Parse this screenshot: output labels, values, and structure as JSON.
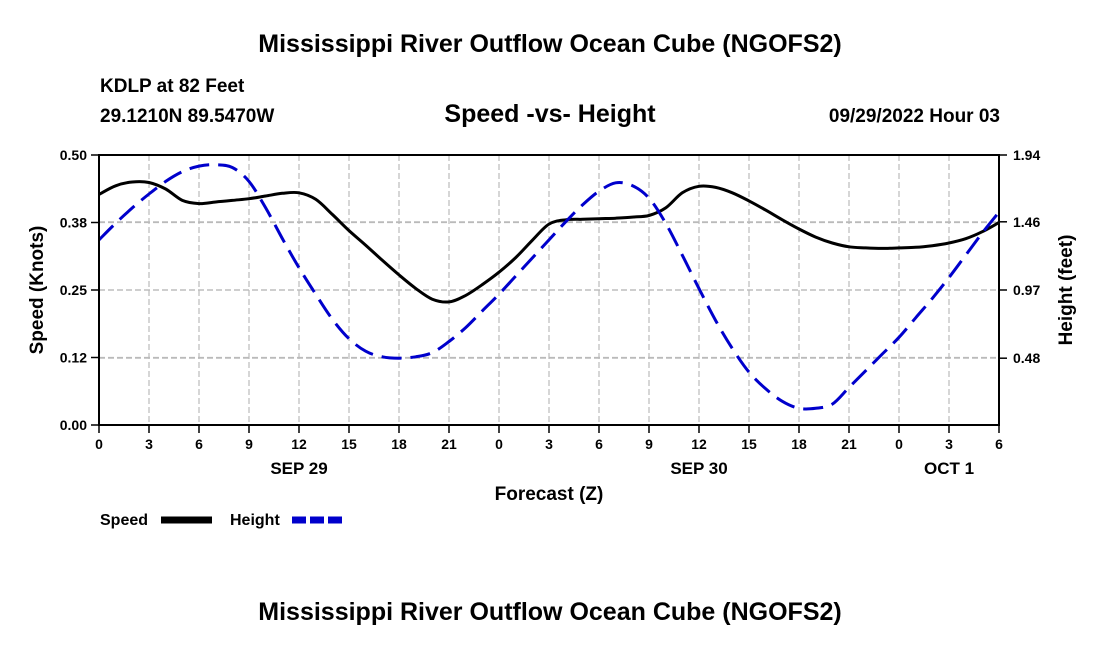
{
  "title": "Mississippi River Outflow Ocean Cube (NGOFS2)",
  "footer_title": "Mississippi River Outflow Ocean Cube (NGOFS2)",
  "station": {
    "name": "KDLP at 82 Feet",
    "coords": "29.1210N  89.5470W",
    "timestamp": "09/29/2022 Hour 03"
  },
  "colors": {
    "speed": "#000000",
    "height": "#0000cc",
    "grid": "#bbbbbb"
  },
  "chart_data": {
    "type": "line",
    "title": "Speed -vs- Height",
    "xlabel": "Forecast (Z)",
    "ylabel": "Speed (Knots)",
    "y2label": "Height (feet)",
    "xlim": [
      0,
      54
    ],
    "ylim": [
      0,
      0.5
    ],
    "y2lim": [
      0,
      1.94
    ],
    "x_ticks": [
      0,
      3,
      6,
      9,
      12,
      15,
      18,
      21,
      24,
      27,
      30,
      33,
      36,
      39,
      42,
      45,
      48,
      51,
      54
    ],
    "x_tick_labels": [
      "0",
      "3",
      "6",
      "9",
      "12",
      "15",
      "18",
      "21",
      "0",
      "3",
      "6",
      "9",
      "12",
      "15",
      "18",
      "21",
      "0",
      "3",
      "6"
    ],
    "y_ticks": [
      0,
      0.125,
      0.25,
      0.375,
      0.5
    ],
    "y_tick_labels": [
      "0.00",
      "0.12",
      "0.25",
      "0.38",
      "0.50"
    ],
    "y2_ticks": [
      0.48,
      0.97,
      1.46,
      1.94
    ],
    "y2_tick_labels": [
      "0.48",
      "0.97",
      "1.46",
      "1.94"
    ],
    "day_labels": [
      {
        "x": 12,
        "label": "SEP 29"
      },
      {
        "x": 36,
        "label": "SEP 30"
      },
      {
        "x": 51,
        "label": "OCT 1"
      }
    ],
    "series": [
      {
        "name": "Speed",
        "axis": "left",
        "style": "solid",
        "x": [
          0,
          1,
          2,
          3,
          4,
          5,
          6,
          7,
          8,
          9,
          10,
          11,
          12,
          13,
          14,
          15,
          16,
          17,
          18,
          19,
          20,
          21,
          22,
          23,
          24,
          25,
          26,
          27,
          28,
          29,
          30,
          31,
          32,
          33,
          34,
          35,
          36,
          37,
          38,
          39,
          40,
          41,
          42,
          43,
          44,
          45,
          46,
          47,
          48,
          49,
          50,
          51,
          52,
          53,
          54
        ],
        "values": [
          0.427,
          0.443,
          0.45,
          0.449,
          0.437,
          0.416,
          0.41,
          0.413,
          0.416,
          0.419,
          0.424,
          0.429,
          0.43,
          0.418,
          0.39,
          0.36,
          0.333,
          0.305,
          0.278,
          0.253,
          0.233,
          0.228,
          0.24,
          0.26,
          0.283,
          0.31,
          0.342,
          0.372,
          0.38,
          0.381,
          0.382,
          0.383,
          0.385,
          0.388,
          0.402,
          0.43,
          0.442,
          0.44,
          0.43,
          0.415,
          0.398,
          0.38,
          0.363,
          0.348,
          0.337,
          0.33,
          0.328,
          0.327,
          0.328,
          0.329,
          0.332,
          0.337,
          0.345,
          0.358,
          0.375
        ]
      },
      {
        "name": "Height",
        "axis": "right",
        "style": "dashed",
        "x": [
          0,
          1,
          2,
          3,
          4,
          5,
          6,
          7,
          8,
          9,
          10,
          11,
          12,
          13,
          14,
          15,
          16,
          17,
          18,
          19,
          20,
          21,
          22,
          23,
          24,
          25,
          26,
          27,
          28,
          29,
          30,
          31,
          32,
          33,
          34,
          35,
          36,
          37,
          38,
          39,
          40,
          41,
          42,
          43,
          44,
          45,
          46,
          47,
          48,
          49,
          50,
          51,
          52,
          53,
          54
        ],
        "values": [
          1.33,
          1.45,
          1.56,
          1.66,
          1.75,
          1.82,
          1.86,
          1.87,
          1.85,
          1.75,
          1.56,
          1.34,
          1.13,
          0.94,
          0.76,
          0.62,
          0.53,
          0.49,
          0.48,
          0.49,
          0.52,
          0.6,
          0.7,
          0.82,
          0.94,
          1.07,
          1.2,
          1.33,
          1.46,
          1.58,
          1.68,
          1.74,
          1.72,
          1.63,
          1.45,
          1.22,
          0.98,
          0.75,
          0.55,
          0.38,
          0.26,
          0.17,
          0.12,
          0.12,
          0.15,
          0.27,
          0.39,
          0.51,
          0.63,
          0.77,
          0.91,
          1.06,
          1.22,
          1.38,
          1.53
        ]
      }
    ],
    "legend": [
      {
        "name": "Speed",
        "style": "solid"
      },
      {
        "name": "Height",
        "style": "dashed"
      }
    ],
    "legend_position": "bottom-left",
    "grid": true
  }
}
